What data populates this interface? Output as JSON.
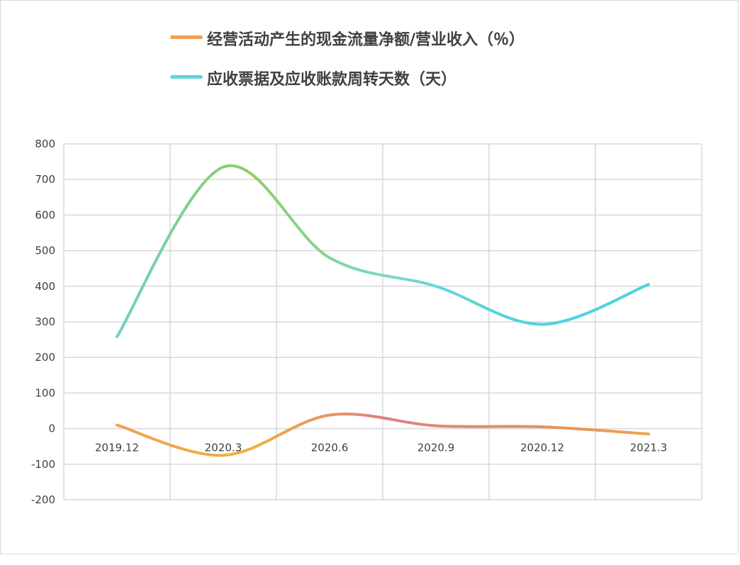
{
  "chart_data": {
    "type": "line",
    "title": "",
    "xlabel": "",
    "ylabel": "",
    "categories": [
      "2019.12",
      "2020.3",
      "2020.6",
      "2020.9",
      "2020.12",
      "2021.3"
    ],
    "ylim": [
      -200,
      800
    ],
    "yticks": [
      800,
      700,
      600,
      500,
      400,
      300,
      200,
      100,
      0,
      -100,
      -200
    ],
    "grid": true,
    "legend": "top",
    "smooth": true,
    "series": [
      {
        "name": "经营活动产生的现金流量净额/营业收入（％）",
        "values": [
          10,
          -75,
          38,
          8,
          5,
          -15
        ],
        "color": "#f0a050",
        "gradient": [
          "#f0a050",
          "#f0b040",
          "#e08080",
          "#e09060",
          "#f0a050"
        ]
      },
      {
        "name": "应收票据及应收账款周转天数（天）",
        "values": [
          258,
          735,
          480,
          400,
          293,
          405
        ],
        "color": "#5ed6dc",
        "gradient": [
          "#6fd0c8",
          "#8cd060",
          "#7cd8c8",
          "#4fd2e0",
          "#4fd2e0"
        ]
      }
    ]
  }
}
